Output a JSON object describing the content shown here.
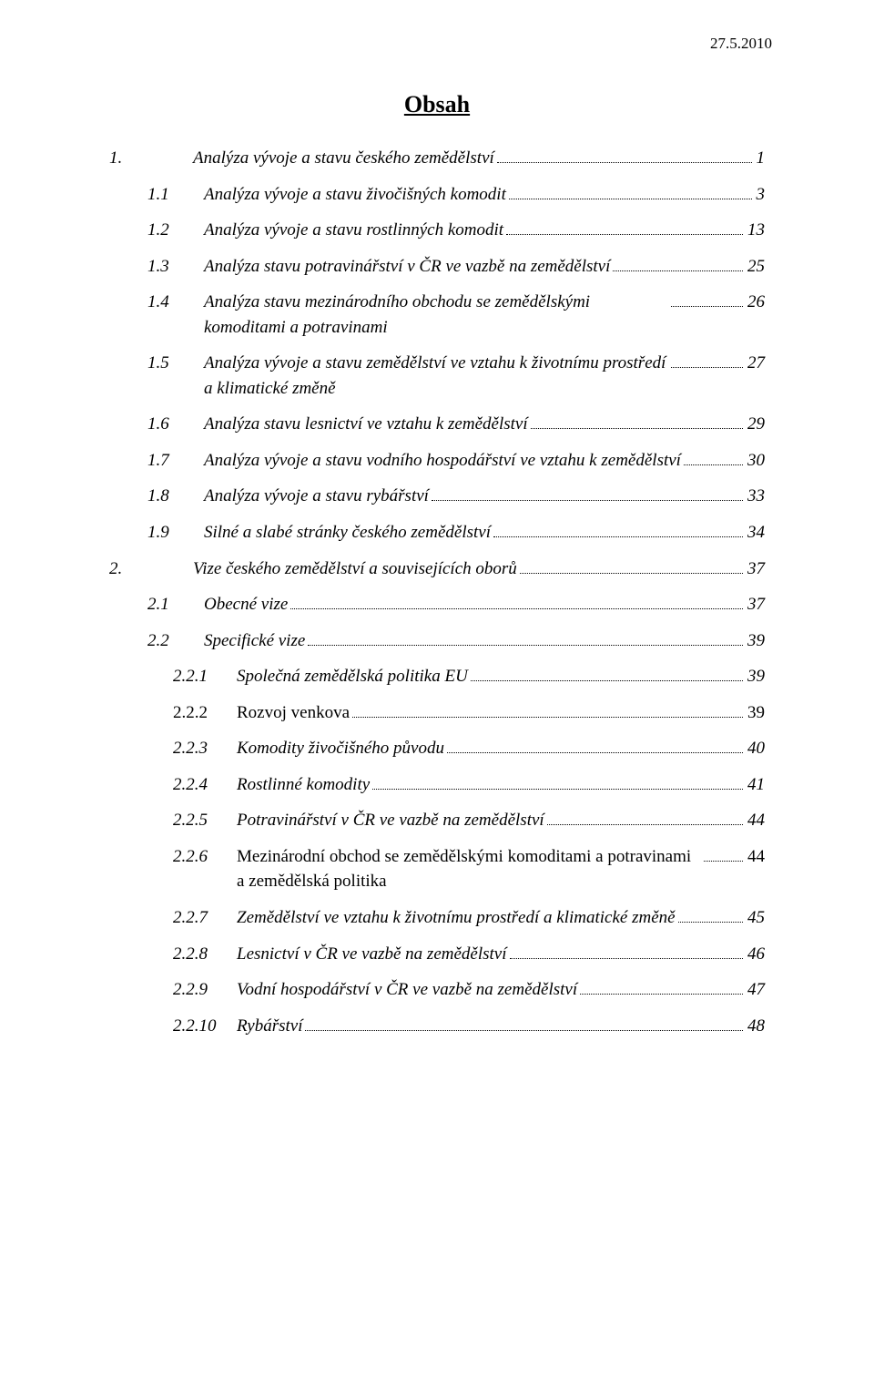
{
  "date": "27.5.2010",
  "title": "Obsah",
  "entries": [
    {
      "level": 1,
      "num": "1.",
      "text": "Analýza vývoje a stavu českého zemědělství",
      "page": "1",
      "italic": true
    },
    {
      "level": 2,
      "num": "1.1",
      "text": "Analýza vývoje a stavu živočišných komodit",
      "page": "3",
      "italic": true
    },
    {
      "level": 2,
      "num": "1.2",
      "text": "Analýza vývoje a stavu rostlinných komodit",
      "page": "13",
      "italic": true
    },
    {
      "level": 2,
      "num": "1.3",
      "text": "Analýza stavu potravinářství v ČR ve vazbě na zemědělství",
      "page": "25",
      "italic": true
    },
    {
      "level": 2,
      "num": "1.4",
      "text": "Analýza stavu mezinárodního obchodu se zemědělskými komoditami  a potravinami",
      "page": "26",
      "italic": true,
      "multi": true
    },
    {
      "level": 2,
      "num": "1.5",
      "text": "Analýza vývoje a stavu zemědělství ve vztahu k životnímu prostředí a klimatické změně",
      "page": "27",
      "italic": true,
      "multi": true
    },
    {
      "level": 2,
      "num": "1.6",
      "text": "Analýza stavu lesnictví ve vztahu k zemědělství",
      "page": "29",
      "italic": true
    },
    {
      "level": 2,
      "num": "1.7",
      "text": "Analýza vývoje a stavu vodního hospodářství ve vztahu k zemědělství",
      "page": "30",
      "italic": true
    },
    {
      "level": 2,
      "num": "1.8",
      "text": "Analýza vývoje a stavu rybářství",
      "page": "33",
      "italic": true
    },
    {
      "level": 2,
      "num": "1.9",
      "text": "Silné a slabé stránky českého zemědělství",
      "page": "34",
      "italic": true
    },
    {
      "level": 1,
      "num": "2.",
      "text": "Vize českého zemědělství a souvisejících oborů",
      "page": "37",
      "italic": true
    },
    {
      "level": 2,
      "num": "2.1",
      "text": "Obecné vize",
      "page": "37",
      "italic": true
    },
    {
      "level": 2,
      "num": "2.2",
      "text": "Specifické vize",
      "page": "39",
      "italic": true
    },
    {
      "level": 3,
      "num": "2.2.1",
      "text": "Společná zemědělská politika EU",
      "page": "39",
      "italic": true
    },
    {
      "level": 3,
      "num": "2.2.2",
      "text": "Rozvoj venkova",
      "page": "39",
      "italic": false
    },
    {
      "level": 3,
      "num": "2.2.3",
      "text": "Komodity živočišného původu",
      "page": "40",
      "italic": true
    },
    {
      "level": 3,
      "num": "2.2.4",
      "text": "Rostlinné komodity",
      "page": "41",
      "italic": true
    },
    {
      "level": 3,
      "num": "2.2.5",
      "text": "Potravinářství v ČR ve vazbě na zemědělství",
      "page": "44",
      "italic": true
    },
    {
      "level": 3,
      "num": "2.2.6",
      "text": "Mezinárodní obchod se zemědělskými komoditami a potravinami a zemědělská politika",
      "page": "44",
      "italic_num": true,
      "italic_text": false,
      "multi": true
    },
    {
      "level": 3,
      "num": "2.2.7",
      "text": "Zemědělství ve vztahu k životnímu prostředí a klimatické změně",
      "page": "45",
      "italic": true
    },
    {
      "level": 3,
      "num": "2.2.8",
      "text": "Lesnictví v ČR ve vazbě na zemědělství",
      "page": "46",
      "italic": true
    },
    {
      "level": 3,
      "num": "2.2.9",
      "text": "Vodní hospodářství v ČR ve vazbě na zemědělství",
      "page": "47",
      "italic": true
    },
    {
      "level": 3,
      "num": "2.2.10",
      "text": "Rybářství",
      "page": "48",
      "italic": true
    }
  ]
}
